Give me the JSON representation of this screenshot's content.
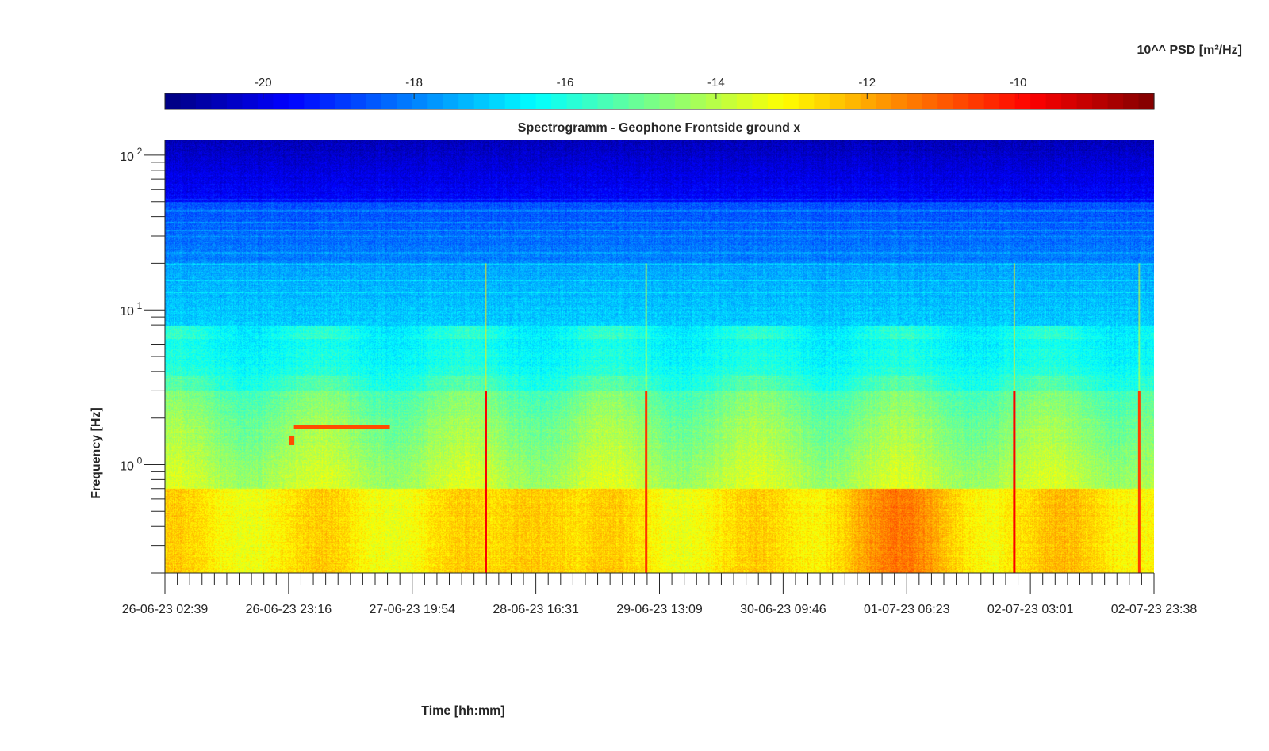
{
  "chart_data": {
    "type": "heatmap",
    "title": "Spectrogramm - Geophone Frontside ground x",
    "xlabel": "Time [hh:mm]",
    "ylabel": "Frequency [Hz]",
    "colorbar": {
      "label": "10^^ PSD [m²/Hz]",
      "range": [
        -21.3,
        -8.2
      ],
      "ticks": [
        -20,
        -18,
        -16,
        -14,
        -12,
        -10
      ],
      "colormap": "jet"
    },
    "y_scale": "log",
    "y_range": [
      0.2,
      125
    ],
    "y_ticks": [
      {
        "value": 1,
        "base": "10",
        "exp": "0"
      },
      {
        "value": 10,
        "base": "10",
        "exp": "1"
      },
      {
        "value": 100,
        "base": "10",
        "exp": "2"
      }
    ],
    "x_range": [
      "2023-06-26 02:39",
      "2023-07-02 23:38"
    ],
    "x_ticks": [
      "26-06-23 02:39",
      "26-06-23 23:16",
      "27-06-23 19:54",
      "28-06-23 16:31",
      "29-06-23 13:09",
      "30-06-23 09:46",
      "01-07-23 06:23",
      "02-07-23 03:01",
      "02-07-23 23:38"
    ],
    "features": {
      "vertical_events": [
        {
          "time": "2023-06-28 08:10",
          "value": -9.8
        },
        {
          "time": "2023-06-29 10:55",
          "value": -10.5
        },
        {
          "time": "2023-07-02 00:20",
          "value": -9.8
        },
        {
          "time": "2023-07-02 21:10",
          "value": -10.6
        }
      ],
      "horizontal_tone": {
        "start": "2023-06-27 00:10",
        "end": "2023-06-27 16:10",
        "frequency": 1.75,
        "value": -10.8
      },
      "short_tone": {
        "time": "2023-06-26 23:50",
        "frequency": 1.4,
        "value": -10.8
      }
    }
  }
}
